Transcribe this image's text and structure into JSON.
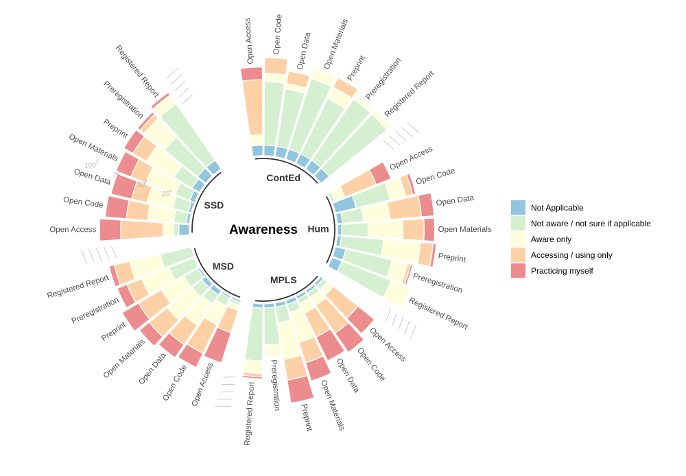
{
  "chart_data": {
    "type": "stacked-circular-bar",
    "title": "Awareness",
    "radial_axis": {
      "ticks": [
        "0",
        "25",
        "50",
        "75",
        "100"
      ],
      "range": [
        0,
        100
      ]
    },
    "legend": {
      "placement": "right",
      "items": [
        {
          "name": "Not Applicable",
          "color": "#92C5DE"
        },
        {
          "name": "Not aware / not sure if applicable",
          "color": "#D5EFD1"
        },
        {
          "name": "Aware only",
          "color": "#FEFEDC"
        },
        {
          "name": "Accessing / using only",
          "color": "#FDD1A5"
        },
        {
          "name": "Practicing myself",
          "color": "#EC8C8E"
        }
      ]
    },
    "categories": [
      "Open Access",
      "Open Code",
      "Open Data",
      "Open Materials",
      "Preprint",
      "Preregistration",
      "Registered Report"
    ],
    "groups": [
      {
        "name": "ContEd",
        "bars": [
          [
            10,
            0,
            10,
            52,
            12
          ],
          [
            10,
            60,
            8,
            15,
            0
          ],
          [
            10,
            55,
            5,
            12,
            0
          ],
          [
            10,
            70,
            10,
            0,
            0
          ],
          [
            10,
            58,
            12,
            10,
            0
          ],
          [
            10,
            70,
            5,
            0,
            0
          ],
          [
            10,
            70,
            5,
            0,
            0
          ]
        ]
      },
      {
        "name": "Hum",
        "bars": [
          [
            0,
            3,
            10,
            32,
            15
          ],
          [
            20,
            33,
            15,
            7,
            3
          ],
          [
            5,
            20,
            25,
            30,
            12
          ],
          [
            4,
            25,
            33,
            20,
            10
          ],
          [
            4,
            40,
            35,
            12,
            3
          ],
          [
            10,
            45,
            15,
            3,
            2
          ],
          [
            10,
            50,
            20,
            0,
            0
          ]
        ]
      },
      {
        "name": "MPLS",
        "bars": [
          [
            3,
            5,
            7,
            30,
            20
          ],
          [
            3,
            5,
            9,
            32,
            22
          ],
          [
            3,
            5,
            10,
            25,
            25
          ],
          [
            4,
            8,
            30,
            20,
            18
          ],
          [
            4,
            15,
            35,
            20,
            22
          ],
          [
            4,
            35,
            10,
            1,
            0
          ],
          [
            4,
            50,
            12,
            3,
            2
          ]
        ]
      },
      {
        "name": "MSD",
        "bars": [
          [
            2,
            3,
            5,
            22,
            30
          ],
          [
            2,
            8,
            20,
            30,
            15
          ],
          [
            5,
            10,
            25,
            22,
            15
          ],
          [
            5,
            12,
            30,
            22,
            12
          ],
          [
            2,
            15,
            25,
            25,
            18
          ],
          [
            1,
            25,
            28,
            15,
            10
          ],
          [
            0,
            30,
            30,
            15,
            5
          ]
        ]
      },
      {
        "name": "SSD",
        "bars": [
          [
            10,
            5,
            10,
            40,
            20
          ],
          [
            3,
            12,
            25,
            20,
            20
          ],
          [
            3,
            15,
            25,
            15,
            20
          ],
          [
            5,
            15,
            30,
            15,
            15
          ],
          [
            8,
            20,
            30,
            15,
            10
          ],
          [
            10,
            40,
            25,
            5,
            3
          ],
          [
            10,
            65,
            10,
            0,
            3
          ]
        ]
      }
    ]
  }
}
